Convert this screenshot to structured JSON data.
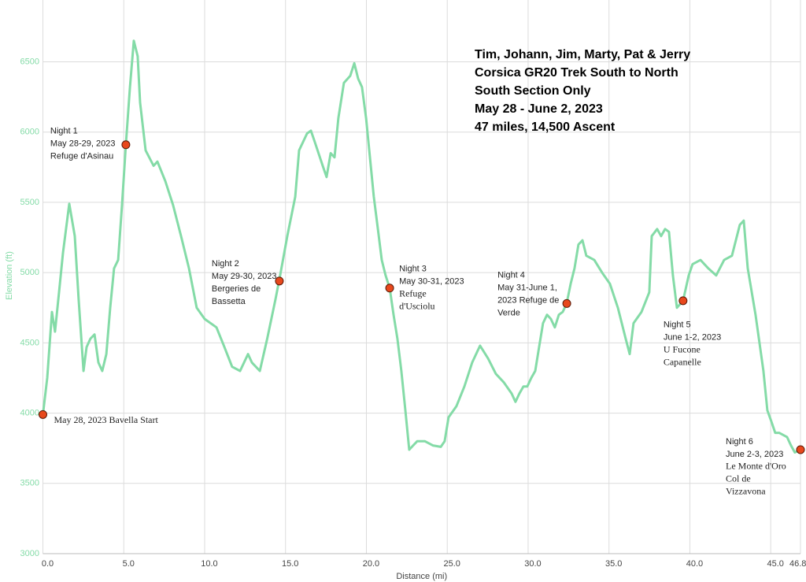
{
  "chart_data": {
    "type": "line",
    "title_lines": [
      "Tim, Johann, Jim, Marty, Pat & Jerry",
      "Corsica GR20 Trek South to North",
      "South Section Only",
      "May 28 - June 2, 2023",
      "47 miles, 14,500 Ascent"
    ],
    "x_label": "Distance (mi)",
    "y_label": "Elevation (ft)",
    "xlim": [
      0,
      46.84
    ],
    "ylim": [
      3000,
      6940
    ],
    "xticks": [
      {
        "value": 0,
        "label": "0.0"
      },
      {
        "value": 5,
        "label": "5.0"
      },
      {
        "value": 10,
        "label": "10.0"
      },
      {
        "value": 15,
        "label": "15.0"
      },
      {
        "value": 20,
        "label": "20.0"
      },
      {
        "value": 25,
        "label": "25.0"
      },
      {
        "value": 30,
        "label": "30.0"
      },
      {
        "value": 35,
        "label": "35.0"
      },
      {
        "value": 40,
        "label": "40.0"
      },
      {
        "value": 45,
        "label": "45.0"
      },
      46.84
    ],
    "yticks": [
      3000,
      3500,
      4000,
      4500,
      5000,
      5500,
      6000,
      6500
    ],
    "grid": true,
    "x": [
      0,
      0.27,
      0.56,
      0.75,
      1.0,
      1.24,
      1.63,
      1.97,
      2.21,
      2.51,
      2.7,
      2.94,
      3.19,
      3.43,
      3.67,
      3.92,
      4.16,
      4.4,
      4.65,
      4.89,
      5.13,
      5.38,
      5.62,
      5.86,
      6.01,
      6.35,
      6.84,
      7.08,
      7.57,
      8.05,
      8.54,
      9.03,
      9.51,
      10.0,
      10.73,
      11.22,
      11.7,
      12.19,
      12.68,
      12.92,
      13.41,
      13.87,
      14.38,
      14.67,
      15.11,
      15.6,
      15.84,
      16.33,
      16.57,
      16.81,
      17.3,
      17.54,
      17.79,
      18.03,
      18.27,
      18.61,
      19.0,
      19.25,
      19.49,
      19.73,
      19.98,
      20.22,
      20.46,
      20.71,
      20.95,
      21.19,
      21.44,
      21.68,
      21.92,
      22.16,
      22.41,
      22.65,
      22.89,
      23.14,
      23.62,
      24.11,
      24.6,
      24.84,
      25.08,
      25.57,
      26.06,
      26.54,
      27.03,
      27.52,
      28.0,
      28.49,
      28.98,
      29.22,
      29.46,
      29.71,
      29.95,
      30.19,
      30.44,
      30.68,
      30.92,
      31.17,
      31.41,
      31.65,
      31.9,
      32.14,
      32.38,
      32.63,
      32.87,
      33.11,
      33.36,
      33.6,
      34.09,
      34.57,
      35.06,
      35.55,
      36.03,
      36.28,
      36.52,
      37.01,
      37.49,
      37.64,
      37.98,
      38.22,
      38.47,
      38.71,
      38.95,
      39.2,
      39.58,
      39.93,
      40.17,
      40.66,
      41.14,
      41.63,
      42.12,
      42.6,
      43.09,
      43.33,
      43.58,
      44.06,
      44.55,
      44.79,
      45.04,
      45.28,
      45.52,
      46.01,
      46.25,
      46.49,
      46.84
    ],
    "series": [
      {
        "name": "Elevation",
        "color": "#84dba7",
        "values": [
          3990,
          4250,
          4720,
          4580,
          4860,
          5140,
          5490,
          5260,
          4810,
          4300,
          4470,
          4530,
          4560,
          4360,
          4300,
          4420,
          4750,
          5030,
          5090,
          5480,
          5910,
          6320,
          6650,
          6540,
          6210,
          5870,
          5760,
          5790,
          5650,
          5480,
          5260,
          5030,
          4750,
          4670,
          4610,
          4470,
          4330,
          4300,
          4420,
          4360,
          4300,
          4530,
          4810,
          4980,
          5260,
          5540,
          5870,
          5990,
          6010,
          5930,
          5760,
          5680,
          5850,
          5820,
          6100,
          6350,
          6400,
          6490,
          6380,
          6320,
          6100,
          5820,
          5540,
          5310,
          5090,
          4980,
          4890,
          4700,
          4530,
          4300,
          4020,
          3740,
          3770,
          3800,
          3800,
          3770,
          3760,
          3800,
          3970,
          4050,
          4190,
          4360,
          4480,
          4390,
          4280,
          4220,
          4140,
          4080,
          4140,
          4190,
          4190,
          4250,
          4300,
          4470,
          4640,
          4700,
          4670,
          4610,
          4700,
          4720,
          4780,
          4920,
          5030,
          5200,
          5230,
          5120,
          5090,
          5000,
          4920,
          4750,
          4530,
          4420,
          4640,
          4720,
          4860,
          5260,
          5310,
          5260,
          5310,
          5290,
          4980,
          4750,
          4800,
          4980,
          5060,
          5090,
          5030,
          4980,
          5090,
          5120,
          5340,
          5370,
          5030,
          4700,
          4300,
          4020,
          3940,
          3860,
          3860,
          3830,
          3770,
          3720,
          3740
        ]
      }
    ],
    "markers": [
      {
        "x": 0,
        "y": 3990,
        "lines": [
          "May 28, 2023 Bavella Start"
        ]
      },
      {
        "x": 5.13,
        "y": 5910,
        "lines": [
          "Night 1",
          "May 28-29, 2023",
          "Refuge d'Asinau"
        ]
      },
      {
        "x": 14.62,
        "y": 4940,
        "lines": [
          "Night 2",
          "May 29-30, 2023",
          "Bergeries de",
          "Bassetta"
        ]
      },
      {
        "x": 21.44,
        "y": 4890,
        "lines": [
          "Night 3",
          "May 30-31, 2023",
          "Refuge",
          "d'Usciolu"
        ]
      },
      {
        "x": 32.39,
        "y": 4780,
        "lines": [
          "Night 4",
          "May 31-June 1,",
          "2023 Refuge de",
          "Verde"
        ]
      },
      {
        "x": 39.58,
        "y": 4800,
        "lines": [
          "Night 5",
          "June 1-2, 2023",
          "U Fucone",
          "Capanelle"
        ]
      },
      {
        "x": 46.84,
        "y": 3740,
        "lines": [
          "Night 6",
          "June 2-3, 2023",
          "Le Monte d'Oro",
          "Col de",
          "Vizzavona"
        ]
      }
    ],
    "marker_color": "#e8481c"
  }
}
